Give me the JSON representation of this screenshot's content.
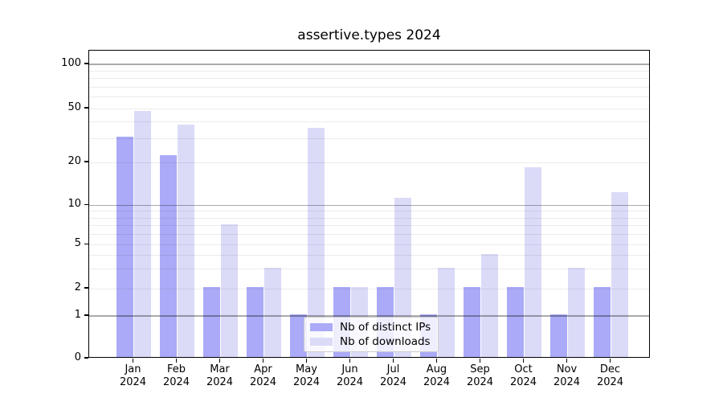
{
  "chart_data": {
    "type": "bar",
    "title": "assertive.types 2024",
    "categories": [
      "Jan 2024",
      "Feb 2024",
      "Mar 2024",
      "Apr 2024",
      "May 2024",
      "Jun 2024",
      "Jul 2024",
      "Aug 2024",
      "Sep 2024",
      "Oct 2024",
      "Nov 2024",
      "Dec 2024"
    ],
    "x_tick_months": [
      "Jan",
      "Feb",
      "Mar",
      "Apr",
      "May",
      "Jun",
      "Jul",
      "Aug",
      "Sep",
      "Oct",
      "Nov",
      "Dec"
    ],
    "x_tick_year": "2024",
    "series": [
      {
        "name": "Nb of distinct IPs",
        "color": "#aaaaf8",
        "values": [
          30,
          22,
          2,
          2,
          1,
          2,
          2,
          1,
          2,
          2,
          1,
          2
        ]
      },
      {
        "name": "Nb of downloads",
        "color": "#dbdbf8",
        "values": [
          47,
          37,
          7,
          3,
          35,
          2,
          11,
          3,
          4,
          18,
          3,
          12
        ]
      }
    ],
    "y_axis": {
      "scale": "log-like with 0 baseline",
      "tick_values": [
        100,
        50,
        20,
        10,
        5,
        2,
        1,
        0
      ],
      "tick_labels": [
        "100",
        "50",
        "20",
        "10",
        "5",
        "2",
        "1",
        "0"
      ],
      "major_gridline_values": [
        1,
        10,
        100
      ],
      "minor_gridline_values": [
        2,
        3,
        4,
        5,
        6,
        7,
        8,
        9,
        20,
        30,
        40,
        50,
        60,
        70,
        80,
        90
      ],
      "ylim": [
        0,
        120
      ]
    },
    "grid": "both",
    "legend": {
      "position": "lower center inside plot",
      "items": [
        "Nb of distinct IPs",
        "Nb of downloads"
      ]
    }
  },
  "colors": {
    "bar_distinct_ips": "#aaaaf8",
    "bar_downloads": "#dbdbf8",
    "axis": "#000000",
    "background": "#ffffff"
  }
}
